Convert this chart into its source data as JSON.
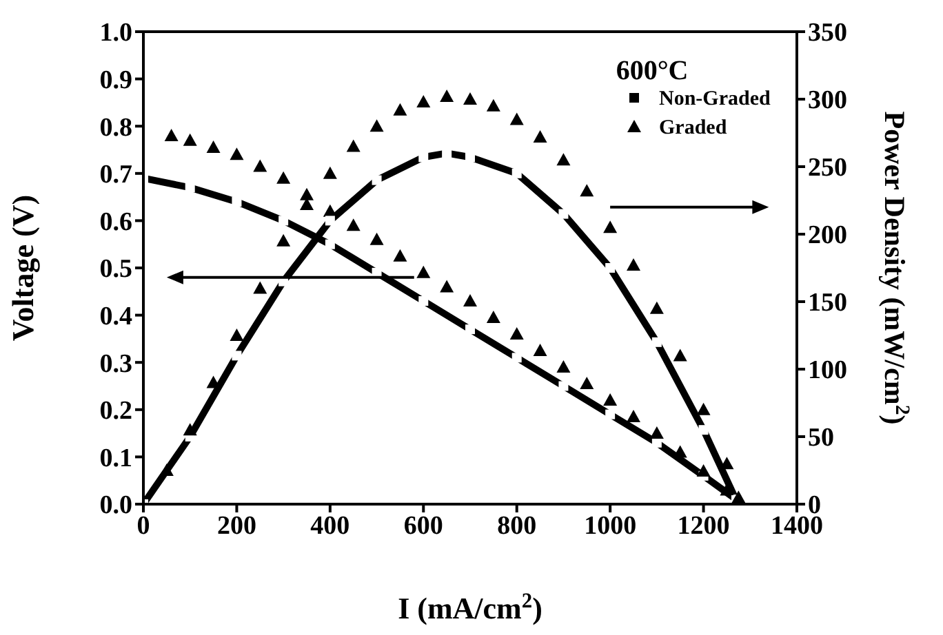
{
  "chart_data": {
    "type": "line",
    "xlabel": "I (mA/cm$^{2}$)",
    "ylabel": "Voltage (V)",
    "y2label": "Power Density (mW/cm$^{2}$)",
    "annotations": [
      "600°C"
    ],
    "xlim": [
      0,
      1400
    ],
    "xticks": [
      0,
      200,
      400,
      600,
      800,
      1000,
      1200,
      1400
    ],
    "ylim": [
      0,
      1
    ],
    "yticks": [
      {
        "value": 0,
        "label": "0.0"
      },
      0.1,
      0.2,
      0.3,
      0.4,
      0.5,
      0.6,
      0.7,
      0.8,
      0.9,
      {
        "value": 1,
        "label": "1.0"
      }
    ],
    "y2lim": [
      0,
      350
    ],
    "y2ticks": [
      0,
      50,
      100,
      150,
      200,
      250,
      300,
      350
    ],
    "legend": "top right",
    "grid": false,
    "series": [
      {
        "name": "Non-Graded",
        "marker": "square",
        "color": "#000000",
        "x": [
          0,
          100,
          200,
          300,
          400,
          500,
          600,
          700,
          800,
          900,
          1000,
          1100,
          1200,
          1270
        ],
        "values": [
          0.69,
          0.67,
          0.64,
          0.6,
          0.55,
          0.49,
          0.43,
          0.37,
          0.31,
          0.25,
          0.19,
          0.13,
          0.06,
          0.01
        ]
      },
      {
        "name": "Graded",
        "type": "scatter",
        "marker": "triangle",
        "color": "#000000",
        "x": [
          60,
          100,
          150,
          200,
          250,
          300,
          350,
          400,
          450,
          500,
          550,
          600,
          650,
          700,
          750,
          800,
          850,
          900,
          950,
          1000,
          1050,
          1100,
          1150,
          1200,
          1250
        ],
        "values": [
          0.78,
          0.77,
          0.755,
          0.74,
          0.715,
          0.69,
          0.655,
          0.62,
          0.59,
          0.56,
          0.525,
          0.49,
          0.46,
          0.43,
          0.395,
          0.36,
          0.325,
          0.29,
          0.255,
          0.22,
          0.185,
          0.15,
          0.11,
          0.07,
          0.03
        ]
      },
      {
        "marker": "square",
        "color": "#000000",
        "axis": "y2",
        "x": [
          0,
          100,
          200,
          300,
          400,
          500,
          600,
          650,
          700,
          800,
          900,
          1000,
          1100,
          1200,
          1270
        ],
        "values": [
          0,
          50,
          110,
          165,
          210,
          240,
          257,
          260,
          257,
          245,
          215,
          175,
          120,
          55,
          3
        ]
      },
      {
        "type": "scatter",
        "marker": "triangle",
        "color": "#000000",
        "axis": "y2",
        "x": [
          50,
          100,
          150,
          200,
          250,
          300,
          350,
          400,
          450,
          500,
          550,
          600,
          650,
          700,
          750,
          800,
          850,
          900,
          950,
          1000,
          1050,
          1100,
          1150,
          1200,
          1250,
          1275
        ],
        "values": [
          25,
          55,
          90,
          125,
          160,
          195,
          222,
          245,
          265,
          280,
          292,
          298,
          302,
          300,
          295,
          285,
          272,
          255,
          232,
          205,
          177,
          145,
          110,
          70,
          30,
          5
        ]
      }
    ]
  }
}
